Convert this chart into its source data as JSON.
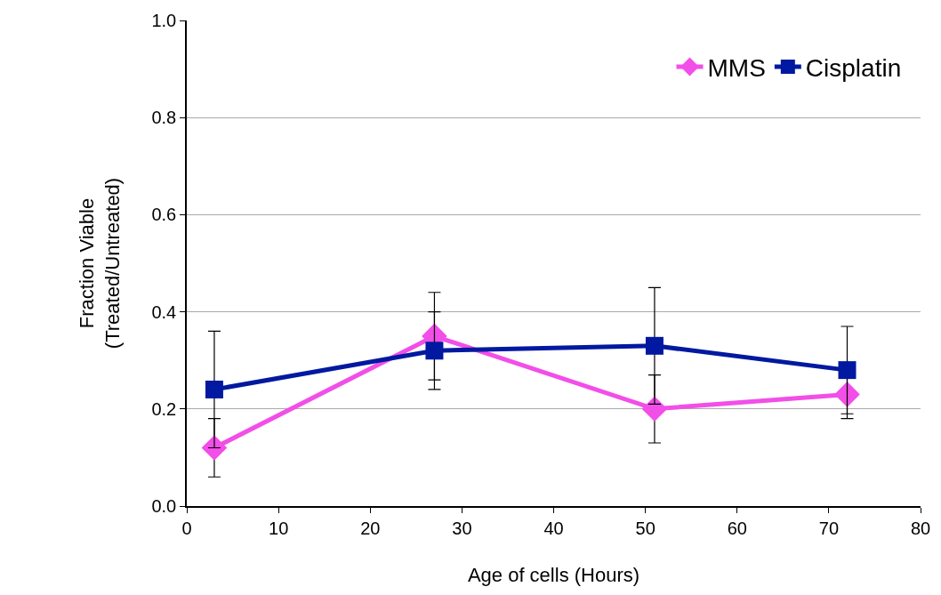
{
  "chart_data": {
    "type": "line",
    "xlabel": "Age of cells (Hours)",
    "ylabel": "Fraction Viable\n(Treated/Untreated)",
    "x": [
      3,
      27,
      51,
      72
    ],
    "series": [
      {
        "name": "MMS",
        "color": "#f24ee8",
        "marker": "diamond",
        "values": [
          0.12,
          0.35,
          0.2,
          0.23
        ],
        "errors": [
          0.06,
          0.09,
          0.07,
          0.05
        ]
      },
      {
        "name": "Cisplatin",
        "color": "#0019a0",
        "marker": "square",
        "values": [
          0.24,
          0.32,
          0.33,
          0.28
        ],
        "errors": [
          0.12,
          0.08,
          0.12,
          0.09
        ]
      }
    ],
    "xlim": [
      0,
      80
    ],
    "xticks": [
      0,
      10,
      20,
      30,
      40,
      50,
      60,
      70,
      80
    ],
    "ylim": [
      0,
      1
    ],
    "yticks": [
      {
        "value": 0,
        "label": "0.0"
      },
      {
        "value": 0.2,
        "label": "0.2"
      },
      {
        "value": 0.4,
        "label": "0.4"
      },
      {
        "value": 0.6,
        "label": "0.6"
      },
      {
        "value": 0.8,
        "label": "0.8"
      },
      {
        "value": 1,
        "label": "1.0"
      }
    ],
    "grid": "y",
    "legend": "top right"
  }
}
